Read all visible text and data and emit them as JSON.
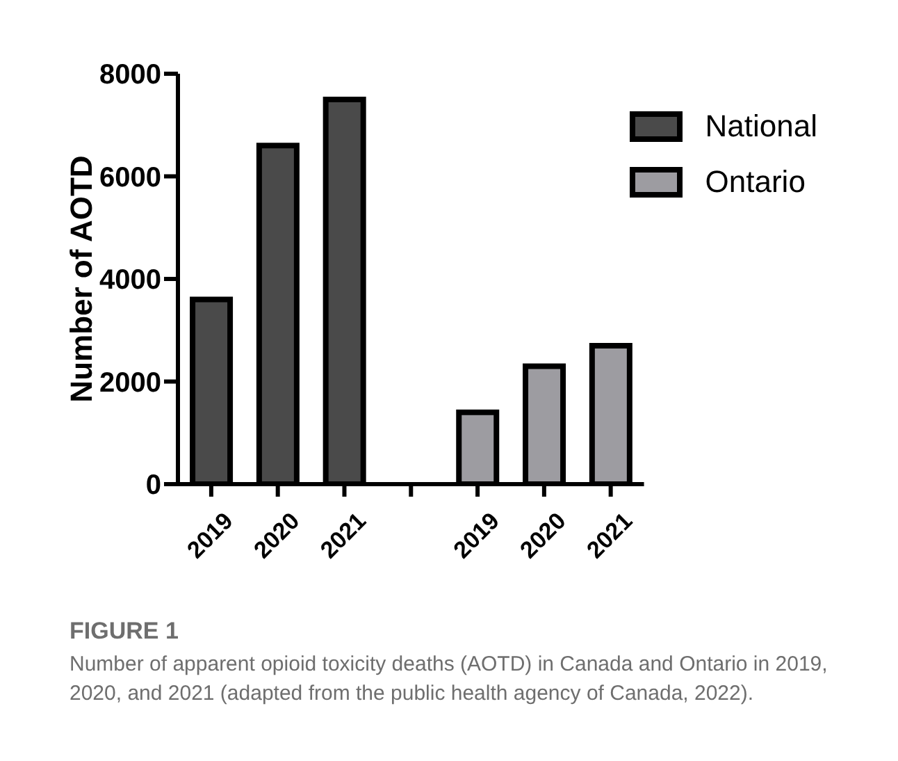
{
  "chart_data": {
    "type": "bar",
    "ylabel": "Number of AOTD",
    "categories": [
      "2019",
      "2020",
      "2021",
      null,
      "2019",
      "2020",
      "2021"
    ],
    "series": [
      {
        "name": "National",
        "color": "#4a4a4a",
        "values": [
          3600,
          6600,
          7500,
          null,
          null,
          null,
          null
        ]
      },
      {
        "name": "Ontario",
        "color": "#9d9ca1",
        "values": [
          null,
          null,
          null,
          null,
          1400,
          2300,
          2700
        ]
      }
    ],
    "ylim": [
      0,
      8000
    ],
    "yticks": [
      0,
      2000,
      4000,
      6000,
      8000
    ],
    "grid": false,
    "legend": "top right",
    "annotations": [
      "FIGURE 1",
      "Number of apparent opioid toxicity deaths (AOTD) in Canada and Ontario in 2019, 2020, and 2021 (adapted from the public health agency of Canada, 2022)."
    ]
  }
}
